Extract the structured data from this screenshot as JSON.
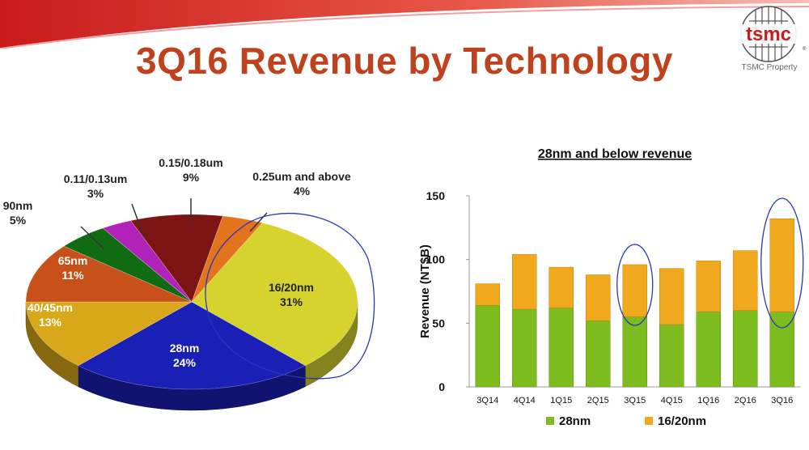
{
  "slide": {
    "title": "3Q16 Revenue by Technology",
    "logo_text": "tsmc",
    "logo_caption": "TSMC Property",
    "accent_color": "#c0411d"
  },
  "chart_data": [
    {
      "type": "pie",
      "title": "",
      "slices": [
        {
          "label": "16/20nm",
          "value": 31,
          "display": "31%",
          "color": "#d6d32e"
        },
        {
          "label": "28nm",
          "value": 24,
          "display": "24%",
          "color": "#1a1fb5"
        },
        {
          "label": "40/45nm",
          "value": 13,
          "display": "13%",
          "color": "#d9a81a"
        },
        {
          "label": "65nm",
          "value": 11,
          "display": "11%",
          "color": "#c8501a"
        },
        {
          "label": "90nm",
          "value": 5,
          "display": "5%",
          "color": "#106b12"
        },
        {
          "label": "0.11/0.13um",
          "value": 3,
          "display": "3%",
          "color": "#b022b8"
        },
        {
          "label": "0.15/0.18um",
          "value": 9,
          "display": "9%",
          "color": "#7d1414"
        },
        {
          "label": "0.25um and above",
          "value": 4,
          "display": "4%",
          "color": "#e2741d"
        }
      ]
    },
    {
      "type": "bar",
      "stacked": true,
      "title": "28nm and below revenue",
      "ylabel": "Revenue (NT$B)",
      "xlabel": "",
      "ylim": [
        0,
        150
      ],
      "yticks": [
        0,
        50,
        100,
        150
      ],
      "categories": [
        "3Q14",
        "4Q14",
        "1Q15",
        "2Q15",
        "3Q15",
        "4Q15",
        "1Q16",
        "2Q16",
        "3Q16"
      ],
      "series": [
        {
          "name": "28nm",
          "color": "#7dbb1f",
          "values": [
            64,
            61,
            62,
            52,
            55,
            49,
            59,
            60,
            59
          ]
        },
        {
          "name": "16/20nm",
          "color": "#f0a81c",
          "values": [
            17,
            43,
            32,
            36,
            41,
            44,
            40,
            47,
            73
          ]
        }
      ],
      "legend_position": "bottom"
    }
  ]
}
